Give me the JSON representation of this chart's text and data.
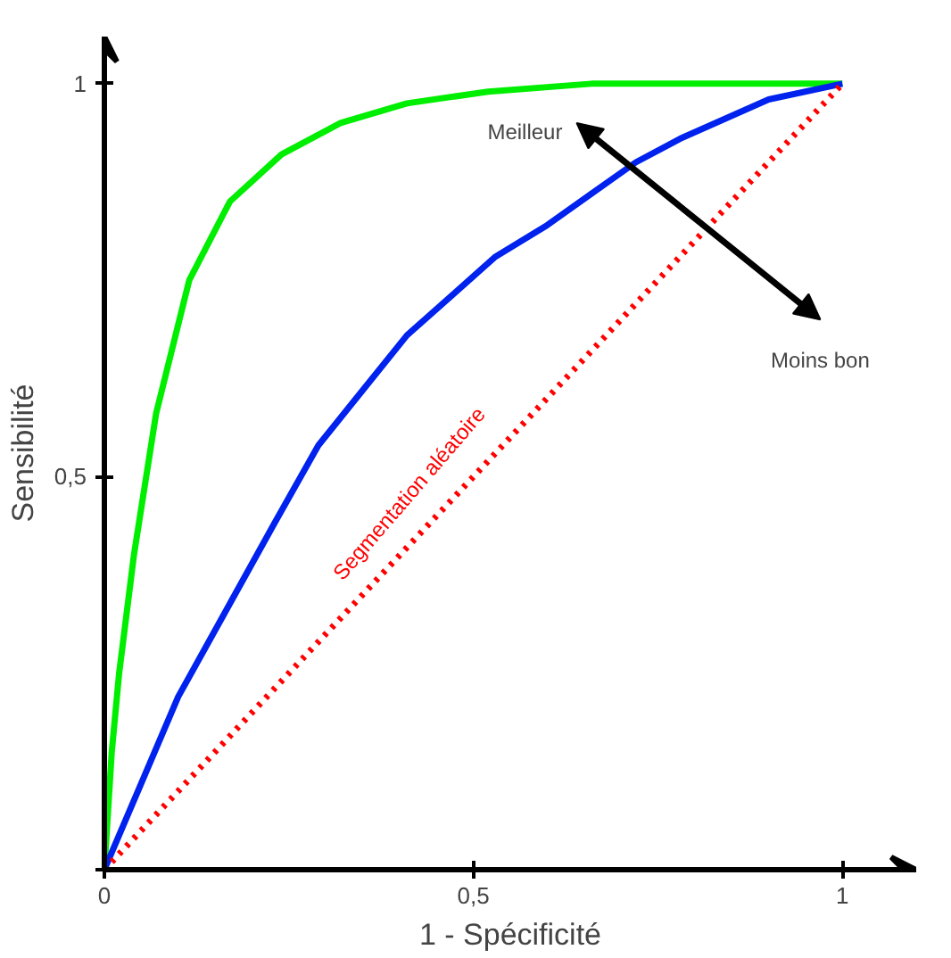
{
  "chart_data": {
    "type": "line",
    "xlabel": "1 - Spécificité",
    "ylabel": "Sensibilité",
    "xlim": [
      0,
      1.1
    ],
    "ylim": [
      0,
      1.06
    ],
    "xticks": [
      0,
      {
        "value": 0.5,
        "label": "0,5"
      },
      1
    ],
    "yticks": [
      {
        "value": 0,
        "label": null
      },
      {
        "value": 0.5,
        "label": "0,5"
      },
      1
    ],
    "grid": false,
    "marker": "none",
    "series": [
      {
        "color": "#00ee00",
        "line_style": "solid",
        "x": [
          0,
          0.01,
          0.02,
          0.04,
          0.07,
          0.115,
          0.17,
          0.24,
          0.32,
          0.41,
          0.52,
          0.66,
          0.8,
          1
        ],
        "values": [
          0,
          0.15,
          0.25,
          0.4,
          0.58,
          0.75,
          0.85,
          0.91,
          0.95,
          0.975,
          0.99,
          1.0,
          1.0,
          1
        ]
      },
      {
        "color": "#0022ee",
        "line_style": "solid",
        "x": [
          0,
          0.05,
          0.1,
          0.165,
          0.23,
          0.29,
          0.35,
          0.41,
          0.47,
          0.53,
          0.6,
          0.66,
          0.72,
          0.78,
          0.84,
          0.9,
          1
        ],
        "values": [
          0,
          0.11,
          0.22,
          0.33,
          0.44,
          0.54,
          0.61,
          0.68,
          0.73,
          0.78,
          0.82,
          0.86,
          0.9,
          0.93,
          0.955,
          0.98,
          1
        ]
      },
      {
        "name": "Segmentation aléatoire",
        "color": "#ff0000",
        "line_style": "dotted",
        "x": [
          0,
          1
        ],
        "values": [
          0,
          1
        ]
      }
    ],
    "annotations": [
      "Meilleur",
      "Moins bon"
    ]
  }
}
